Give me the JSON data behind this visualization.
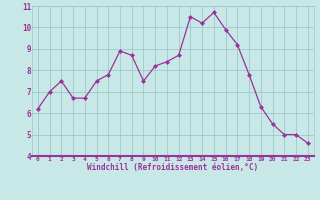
{
  "x": [
    0,
    1,
    2,
    3,
    4,
    5,
    6,
    7,
    8,
    9,
    10,
    11,
    12,
    13,
    14,
    15,
    16,
    17,
    18,
    19,
    20,
    21,
    22,
    23
  ],
  "y": [
    6.2,
    7.0,
    7.5,
    6.7,
    6.7,
    7.5,
    7.8,
    8.9,
    8.7,
    7.5,
    8.2,
    8.4,
    8.7,
    10.5,
    10.2,
    10.7,
    9.9,
    9.2,
    7.8,
    6.3,
    5.5,
    5.0,
    5.0,
    4.6
  ],
  "line_color": "#993399",
  "marker_color": "#993399",
  "bg_color": "#c8e8e8",
  "grid_color": "#a0c8c8",
  "xlabel": "Windchill (Refroidissement éolien,°C)",
  "xlabel_color": "#993399",
  "tick_color": "#993399",
  "spine_color": "#993399",
  "ylim": [
    4,
    11
  ],
  "xlim_min": -0.5,
  "xlim_max": 23.5,
  "yticks": [
    4,
    5,
    6,
    7,
    8,
    9,
    10,
    11
  ],
  "xticks": [
    0,
    1,
    2,
    3,
    4,
    5,
    6,
    7,
    8,
    9,
    10,
    11,
    12,
    13,
    14,
    15,
    16,
    17,
    18,
    19,
    20,
    21,
    22,
    23
  ]
}
